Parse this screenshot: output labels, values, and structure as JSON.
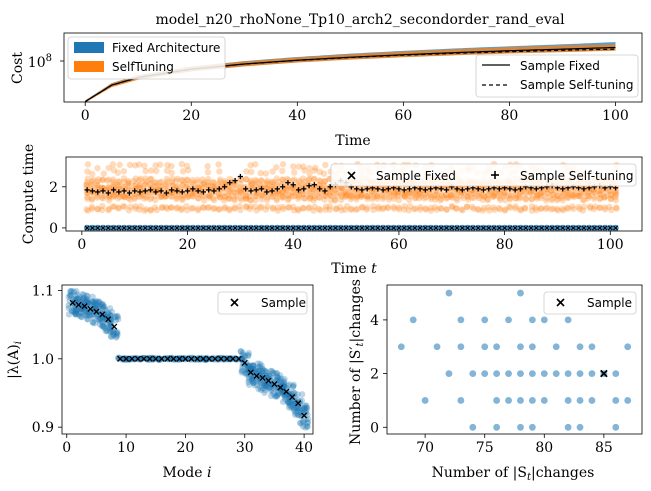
{
  "figure": {
    "title": "model_n20_rhoNone_Tp10_arch2_secondorder_rand_eval"
  },
  "colors": {
    "blue": "#1f77b4",
    "orange": "#ff7f0e",
    "axis": "#000000"
  },
  "chart_data": [
    {
      "id": "cost",
      "type": "area",
      "title": "model_n20_rhoNone_Tp10_arch2_secondorder_rand_eval",
      "xlabel": "Time",
      "ylabel": "Cost",
      "xlim": [
        -4,
        105
      ],
      "ylim_log10": [
        6.75,
        9.05
      ],
      "yscale": "log",
      "xticks": [
        0,
        20,
        40,
        60,
        80,
        100
      ],
      "yticks": [
        {
          "value": 100000000,
          "label": "10^8"
        }
      ],
      "x": [
        0,
        5,
        10,
        20,
        30,
        40,
        50,
        60,
        70,
        80,
        90,
        100
      ],
      "series": [
        {
          "name": "Fixed Architecture",
          "kind": "band",
          "color": "#1f77b4",
          "lower": [
            5400000,
            18000000,
            32000000,
            59000000,
            88000000,
            118000000,
            148000000,
            178000000,
            208000000,
            238000000,
            262000000,
            295000000
          ],
          "upper": [
            6300000,
            24000000,
            44000000,
            86000000,
            130000000,
            178000000,
            230000000,
            285000000,
            345000000,
            405000000,
            470000000,
            560000000
          ]
        },
        {
          "name": "SelfTuning",
          "kind": "band",
          "color": "#ff7f0e",
          "lower": [
            5300000,
            17500000,
            31000000,
            58000000,
            86000000,
            116000000,
            145000000,
            174000000,
            203000000,
            232000000,
            258000000,
            288000000
          ],
          "upper": [
            6200000,
            23500000,
            43000000,
            84000000,
            127000000,
            172000000,
            220000000,
            272000000,
            325000000,
            380000000,
            432000000,
            470000000
          ]
        },
        {
          "name": "Sample Fixed",
          "kind": "line",
          "dash": "solid",
          "values": [
            5800000,
            20500000,
            37000000,
            70000000,
            104000000,
            139000000,
            175000000,
            212000000,
            250000000,
            288000000,
            325000000,
            370000000
          ]
        },
        {
          "name": "Sample Self-tuning",
          "kind": "line",
          "dash": "dashed",
          "values": [
            5800000,
            20400000,
            36800000,
            69500000,
            103000000,
            137000000,
            171000000,
            205000000,
            238000000,
            268000000,
            298000000,
            325000000
          ]
        }
      ],
      "legend": [
        {
          "label": "Fixed Architecture",
          "placement": "upper-left"
        },
        {
          "label": "SelfTuning",
          "placement": "upper-left"
        },
        {
          "label": "Sample Fixed",
          "placement": "lower-right"
        },
        {
          "label": "Sample Self-tuning",
          "placement": "lower-right"
        }
      ]
    },
    {
      "id": "compute",
      "type": "scatter",
      "xlabel": "Time t",
      "ylabel": "Compute time",
      "xlim": [
        -3,
        106
      ],
      "ylim": [
        -0.15,
        3.45
      ],
      "xticks": [
        0,
        20,
        40,
        60,
        80,
        100
      ],
      "yticks": [
        0,
        2
      ],
      "x_start": 1,
      "x_end": 101,
      "scatter_groups": [
        {
          "name": "Fixed",
          "color": "#1f77b4",
          "y_levels": [
            0.0
          ]
        },
        {
          "name": "SelfTuning",
          "color": "#ff7f0e",
          "y_levels": [
            0.95,
            1.45,
            1.65,
            1.85,
            2.05,
            2.3,
            2.7,
            3.0
          ]
        }
      ],
      "series": [
        {
          "name": "Sample Fixed",
          "marker": "x",
          "values_constant": 0.0
        },
        {
          "name": "Sample Self-tuning",
          "marker": "+",
          "values": [
            1.85,
            1.8,
            1.75,
            1.8,
            1.7,
            1.85,
            1.75,
            1.8,
            1.7,
            1.8,
            1.75,
            1.8,
            1.85,
            1.75,
            1.8,
            1.7,
            1.85,
            1.8,
            1.75,
            1.8,
            1.9,
            1.8,
            1.75,
            1.85,
            1.8,
            1.9,
            2.0,
            2.2,
            2.3,
            2.5,
            1.9,
            1.8,
            1.85,
            1.9,
            1.75,
            1.8,
            1.9,
            2.0,
            2.2,
            2.1,
            1.85,
            1.9,
            2.05,
            2.1,
            1.9,
            1.8,
            2.0,
            2.1,
            2.3,
            2.2,
            2.0,
            1.9,
            1.85,
            1.9,
            1.95,
            1.9,
            1.85,
            1.9,
            1.95,
            1.9,
            1.85,
            1.9,
            1.95,
            1.9,
            1.85,
            1.9,
            1.95,
            1.9,
            1.85,
            2.0,
            1.9,
            1.85,
            1.9,
            1.95,
            1.9,
            1.85,
            1.9,
            1.95,
            1.9,
            1.95,
            1.9,
            1.85,
            1.9,
            2.0,
            1.95,
            1.9,
            1.95,
            2.0,
            2.05,
            1.95,
            1.9,
            1.95,
            2.0,
            1.95,
            1.9,
            1.95,
            2.0,
            2.05,
            1.95,
            2.0,
            1.95
          ]
        }
      ],
      "legend": [
        {
          "label": "Sample Fixed",
          "placement": "upper-right"
        },
        {
          "label": "Sample Self-tuning",
          "placement": "upper-right"
        }
      ]
    },
    {
      "id": "modes",
      "type": "scatter",
      "xlabel": "Mode i",
      "ylabel": "|λ(A)_i|",
      "xlim": [
        -0.8,
        41.5
      ],
      "ylim": [
        0.89,
        1.108
      ],
      "xticks": [
        0,
        10,
        20,
        30,
        40
      ],
      "yticks": [
        0.9,
        1.0,
        1.1
      ],
      "ytick_labels": [
        "0.9",
        "1.0",
        "1.1"
      ],
      "cloud_color": "#1f77b4",
      "series": [
        {
          "name": "Sample",
          "marker": "x",
          "x": [
            1,
            2,
            3,
            4,
            5,
            6,
            7,
            8,
            9,
            10,
            11,
            12,
            13,
            14,
            15,
            16,
            17,
            18,
            19,
            20,
            21,
            22,
            23,
            24,
            25,
            26,
            27,
            28,
            29,
            30,
            31,
            32,
            33,
            34,
            35,
            36,
            37,
            38,
            39,
            40
          ],
          "values": [
            1.082,
            1.079,
            1.077,
            1.073,
            1.069,
            1.065,
            1.058,
            1.047,
            1.0,
            1.0,
            1.0,
            1.0,
            1.0,
            1.0,
            1.0,
            1.0,
            1.0,
            1.0,
            1.0,
            1.0,
            1.0,
            1.0,
            1.0,
            1.0,
            1.0,
            1.0,
            1.0,
            1.0,
            1.0,
            0.994,
            0.98,
            0.975,
            0.972,
            0.968,
            0.963,
            0.958,
            0.952,
            0.944,
            0.935,
            0.917
          ]
        }
      ],
      "legend": [
        {
          "label": "Sample",
          "placement": "upper-right"
        }
      ]
    },
    {
      "id": "changes",
      "type": "scatter",
      "xlabel": "Number of |S_t| changes",
      "ylabel": "Number of |S'_t| changes",
      "xlim": [
        66.8,
        88.2
      ],
      "ylim": [
        -0.25,
        5.3
      ],
      "xticks": [
        70,
        75,
        80,
        85
      ],
      "yticks": [
        0,
        2,
        4
      ],
      "cloud_color": "#1f77b4",
      "points": [
        [
          72,
          5
        ],
        [
          78,
          5
        ],
        [
          69,
          4
        ],
        [
          73,
          4
        ],
        [
          75,
          4
        ],
        [
          77,
          4
        ],
        [
          79,
          4
        ],
        [
          80,
          4
        ],
        [
          82,
          4
        ],
        [
          68,
          3
        ],
        [
          71,
          3
        ],
        [
          73,
          3
        ],
        [
          75,
          3
        ],
        [
          76,
          3
        ],
        [
          78,
          3
        ],
        [
          79,
          3
        ],
        [
          81,
          3
        ],
        [
          83,
          3
        ],
        [
          84,
          3
        ],
        [
          87,
          3
        ],
        [
          72,
          2
        ],
        [
          74,
          2
        ],
        [
          75,
          2
        ],
        [
          76,
          2
        ],
        [
          77,
          2
        ],
        [
          78,
          2
        ],
        [
          79,
          2
        ],
        [
          80,
          2
        ],
        [
          81,
          2
        ],
        [
          82,
          2
        ],
        [
          83,
          2
        ],
        [
          84,
          2
        ],
        [
          85,
          2
        ],
        [
          86,
          2
        ],
        [
          70,
          1
        ],
        [
          73,
          1
        ],
        [
          76,
          1
        ],
        [
          77,
          1
        ],
        [
          78,
          1
        ],
        [
          79,
          1
        ],
        [
          80,
          1
        ],
        [
          82,
          1
        ],
        [
          83,
          1
        ],
        [
          84,
          1
        ],
        [
          86,
          1
        ],
        [
          87,
          1
        ],
        [
          74,
          0
        ],
        [
          76,
          0
        ],
        [
          78,
          0
        ],
        [
          79,
          0
        ],
        [
          82,
          0
        ],
        [
          83,
          0
        ],
        [
          86,
          0
        ]
      ],
      "series": [
        {
          "name": "Sample",
          "marker": "x",
          "x": [
            85
          ],
          "values": [
            2
          ]
        }
      ],
      "legend": [
        {
          "label": "Sample",
          "placement": "upper-right"
        }
      ]
    }
  ],
  "labels": {
    "cost_title": "model_n20_rhoNone_Tp10_arch2_secondorder_rand_eval",
    "cost_xlabel": "Time",
    "cost_ylabel": "Cost",
    "cost_ytick_base": "10",
    "cost_ytick_exp": "8",
    "leg_fixed_arch": "Fixed Architecture",
    "leg_selftuning": "SelfTuning",
    "leg_sample_fixed": "Sample Fixed",
    "leg_sample_selftuning": "Sample Self-tuning",
    "compute_xlabel_main": "Time",
    "compute_xlabel_var": "t",
    "compute_ylabel": "Compute time",
    "modes_xlabel_main": "Mode",
    "modes_xlabel_var": "i",
    "modes_ylabel": "|λ(A)",
    "modes_ylabel_sub": "i",
    "leg_sample": "Sample",
    "changes_xlabel_pre": "Number of |S",
    "changes_xlabel_sub": "t",
    "changes_xlabel_post": "|changes",
    "changes_ylabel_pre": "Number of |S′",
    "changes_ylabel_sub": "t",
    "changes_ylabel_post": "|changes"
  }
}
